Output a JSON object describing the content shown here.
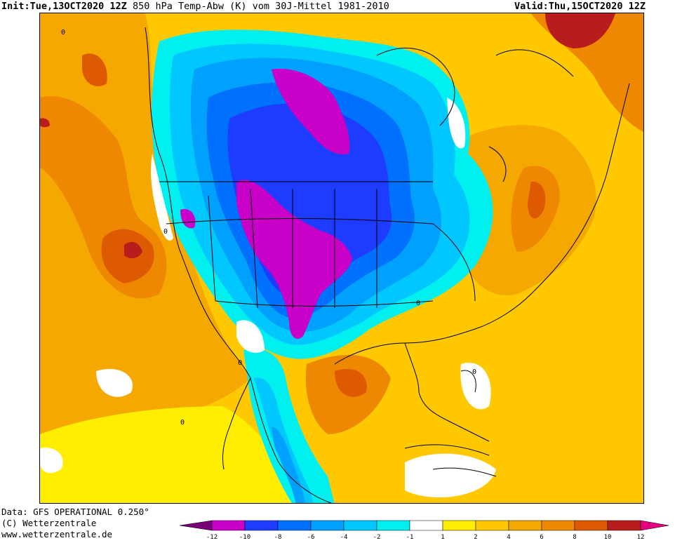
{
  "header": {
    "init_label": "Init:",
    "init_value": "Tue,13OCT2020 12Z",
    "product": "850 hPa Temp-Abw (K) vom 30J-Mittel 1981-2010",
    "valid_label": "Valid:",
    "valid_value": "Thu,15OCT2020 12Z"
  },
  "footer": {
    "data_source": "Data: GFS OPERATIONAL 0.250°",
    "copyright": "(C) Wetterzentrale",
    "url": "www.wetterzentrale.de"
  },
  "colors": {
    "ocean_warm": "#f5a800",
    "neutral": "#ffffff",
    "band_0_1": "#ffffff",
    "band_1_2": "#ffee00",
    "band_2_4": "#ffc800",
    "band_4_6": "#f5a800",
    "band_6_8": "#ee8800",
    "band_8_10": "#de5a00",
    "band_10_12": "#b81c1c",
    "band_m1_m2": "#00f0f0",
    "band_m2_m4": "#00c8ff",
    "band_m4_m6": "#00a0ff",
    "band_m6_m8": "#0070ff",
    "band_m8_m10": "#1e3cff",
    "band_m10_m12": "#c800c8",
    "below_m12": "#7a007a",
    "above_12": "#e6007e",
    "coast": "#000000"
  },
  "legend": {
    "segments": [
      {
        "color": "#7a007a",
        "label": "-12"
      },
      {
        "color": "#c800c8",
        "label": "-10"
      },
      {
        "color": "#1e3cff",
        "label": "-8"
      },
      {
        "color": "#0070ff",
        "label": "-6"
      },
      {
        "color": "#00a0ff",
        "label": "-4"
      },
      {
        "color": "#00c8ff",
        "label": "-2"
      },
      {
        "color": "#00f0f0",
        "label": "-1"
      },
      {
        "color": "#ffffff",
        "label": "1"
      },
      {
        "color": "#ffee00",
        "label": "2"
      },
      {
        "color": "#ffc800",
        "label": "4"
      },
      {
        "color": "#f5a800",
        "label": "6"
      },
      {
        "color": "#ee8800",
        "label": "8"
      },
      {
        "color": "#de5a00",
        "label": "10"
      },
      {
        "color": "#b81c1c",
        "label": "12"
      },
      {
        "color": "#e6007e",
        "label": ""
      }
    ]
  },
  "map": {
    "contour_label": "0",
    "region": "North America"
  }
}
